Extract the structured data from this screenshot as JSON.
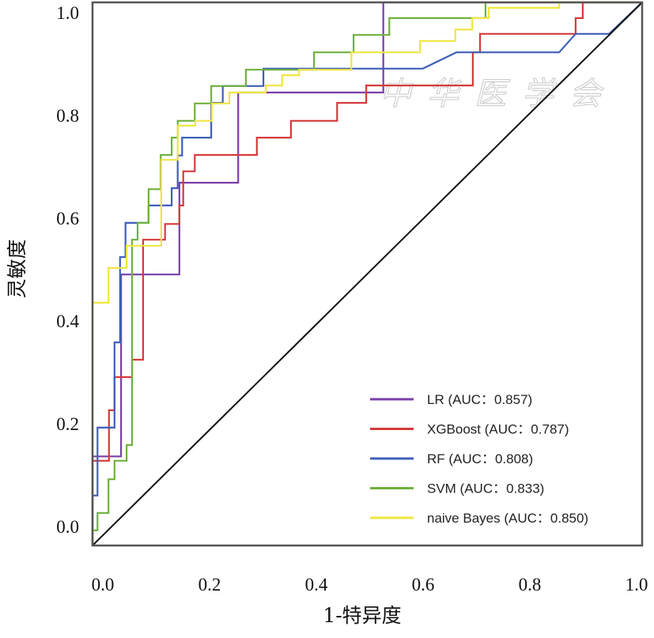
{
  "chart_data": {
    "type": "line",
    "title": "",
    "xlabel": "1-特异度",
    "ylabel": "灵敏度",
    "xlim": [
      0,
      1
    ],
    "ylim": [
      0,
      1
    ],
    "x_ticks": [
      "0.0",
      "0.2",
      "0.4",
      "0.6",
      "0.8",
      "1.0"
    ],
    "y_ticks": [
      "0.0",
      "0.2",
      "0.4",
      "0.6",
      "0.8",
      "1.0"
    ],
    "grid": false,
    "legend_position": "bottom-right",
    "reference_line": {
      "from": [
        0,
        0
      ],
      "to": [
        1,
        1
      ],
      "color": "#111111"
    },
    "watermark": "中华医学会",
    "series": [
      {
        "name": "LR (AUC：0.857)",
        "color": "#7b3fa8",
        "points": [
          [
            0,
            0
          ],
          [
            0,
            0.164
          ],
          [
            0.052,
            0.164
          ],
          [
            0.052,
            0.499
          ],
          [
            0.158,
            0.499
          ],
          [
            0.158,
            0.668
          ],
          [
            0.265,
            0.668
          ],
          [
            0.265,
            0.834
          ],
          [
            0.529,
            0.834
          ],
          [
            0.529,
            1
          ],
          [
            1,
            1
          ]
        ]
      },
      {
        "name": "XGBoost (AUC：0.787)",
        "color": "#d63a3a",
        "points": [
          [
            0,
            0
          ],
          [
            0,
            0.156
          ],
          [
            0.03,
            0.156
          ],
          [
            0.03,
            0.249
          ],
          [
            0.04,
            0.249
          ],
          [
            0.04,
            0.31
          ],
          [
            0.072,
            0.31
          ],
          [
            0.072,
            0.342
          ],
          [
            0.092,
            0.342
          ],
          [
            0.092,
            0.563
          ],
          [
            0.132,
            0.563
          ],
          [
            0.132,
            0.592
          ],
          [
            0.158,
            0.592
          ],
          [
            0.158,
            0.626
          ],
          [
            0.165,
            0.626
          ],
          [
            0.165,
            0.689
          ],
          [
            0.186,
            0.689
          ],
          [
            0.186,
            0.719
          ],
          [
            0.299,
            0.719
          ],
          [
            0.299,
            0.751
          ],
          [
            0.361,
            0.751
          ],
          [
            0.361,
            0.782
          ],
          [
            0.445,
            0.782
          ],
          [
            0.445,
            0.815
          ],
          [
            0.498,
            0.815
          ],
          [
            0.498,
            0.847
          ],
          [
            0.692,
            0.847
          ],
          [
            0.692,
            0.908
          ],
          [
            0.705,
            0.908
          ],
          [
            0.705,
            0.942
          ],
          [
            0.879,
            0.942
          ],
          [
            0.879,
            0.971
          ],
          [
            0.892,
            0.971
          ],
          [
            0.892,
            1
          ],
          [
            1,
            1
          ]
        ]
      },
      {
        "name": "RF (AUC：0.808)",
        "color": "#3f5fb8",
        "points": [
          [
            0,
            0
          ],
          [
            0,
            0.092
          ],
          [
            0.009,
            0.092
          ],
          [
            0.009,
            0.217
          ],
          [
            0.04,
            0.217
          ],
          [
            0.04,
            0.374
          ],
          [
            0.05,
            0.374
          ],
          [
            0.05,
            0.531
          ],
          [
            0.06,
            0.531
          ],
          [
            0.06,
            0.594
          ],
          [
            0.102,
            0.594
          ],
          [
            0.102,
            0.626
          ],
          [
            0.144,
            0.626
          ],
          [
            0.144,
            0.658
          ],
          [
            0.155,
            0.658
          ],
          [
            0.155,
            0.718
          ],
          [
            0.163,
            0.718
          ],
          [
            0.163,
            0.751
          ],
          [
            0.216,
            0.751
          ],
          [
            0.216,
            0.815
          ],
          [
            0.237,
            0.815
          ],
          [
            0.237,
            0.846
          ],
          [
            0.311,
            0.846
          ],
          [
            0.311,
            0.878
          ],
          [
            0.601,
            0.878
          ],
          [
            0.662,
            0.908
          ],
          [
            0.849,
            0.908
          ],
          [
            0.879,
            0.942
          ],
          [
            0.94,
            0.942
          ],
          [
            1,
            1
          ]
        ]
      },
      {
        "name": "SVM (AUC：0.833)",
        "color": "#6fb13f",
        "points": [
          [
            0,
            0
          ],
          [
            0,
            0.028
          ],
          [
            0.009,
            0.028
          ],
          [
            0.009,
            0.06
          ],
          [
            0.029,
            0.06
          ],
          [
            0.029,
            0.122
          ],
          [
            0.04,
            0.122
          ],
          [
            0.04,
            0.156
          ],
          [
            0.062,
            0.156
          ],
          [
            0.062,
            0.185
          ],
          [
            0.072,
            0.185
          ],
          [
            0.072,
            0.563
          ],
          [
            0.082,
            0.563
          ],
          [
            0.082,
            0.594
          ],
          [
            0.102,
            0.594
          ],
          [
            0.102,
            0.656
          ],
          [
            0.124,
            0.656
          ],
          [
            0.124,
            0.719
          ],
          [
            0.144,
            0.719
          ],
          [
            0.144,
            0.751
          ],
          [
            0.155,
            0.751
          ],
          [
            0.155,
            0.782
          ],
          [
            0.186,
            0.782
          ],
          [
            0.186,
            0.814
          ],
          [
            0.216,
            0.814
          ],
          [
            0.216,
            0.846
          ],
          [
            0.279,
            0.846
          ],
          [
            0.279,
            0.876
          ],
          [
            0.403,
            0.876
          ],
          [
            0.403,
            0.908
          ],
          [
            0.475,
            0.908
          ],
          [
            0.475,
            0.94
          ],
          [
            0.54,
            0.94
          ],
          [
            0.54,
            0.971
          ],
          [
            0.715,
            0.971
          ],
          [
            0.715,
            1
          ],
          [
            1,
            1
          ]
        ]
      },
      {
        "name": "naive Bayes (AUC：0.850)",
        "color": "#eee642",
        "points": [
          [
            0,
            0
          ],
          [
            0,
            0.447
          ],
          [
            0.029,
            0.447
          ],
          [
            0.029,
            0.511
          ],
          [
            0.062,
            0.511
          ],
          [
            0.062,
            0.552
          ],
          [
            0.125,
            0.552
          ],
          [
            0.125,
            0.71
          ],
          [
            0.155,
            0.71
          ],
          [
            0.155,
            0.773
          ],
          [
            0.187,
            0.773
          ],
          [
            0.187,
            0.782
          ],
          [
            0.217,
            0.782
          ],
          [
            0.217,
            0.814
          ],
          [
            0.249,
            0.814
          ],
          [
            0.249,
            0.834
          ],
          [
            0.315,
            0.834
          ],
          [
            0.315,
            0.847
          ],
          [
            0.345,
            0.847
          ],
          [
            0.345,
            0.866
          ],
          [
            0.376,
            0.866
          ],
          [
            0.376,
            0.876
          ],
          [
            0.471,
            0.876
          ],
          [
            0.471,
            0.908
          ],
          [
            0.596,
            0.908
          ],
          [
            0.596,
            0.929
          ],
          [
            0.66,
            0.929
          ],
          [
            0.66,
            0.95
          ],
          [
            0.691,
            0.95
          ],
          [
            0.691,
            0.971
          ],
          [
            0.721,
            0.971
          ],
          [
            0.721,
            0.99
          ],
          [
            0.849,
            0.99
          ],
          [
            0.849,
            1
          ],
          [
            1,
            1
          ]
        ]
      }
    ]
  }
}
